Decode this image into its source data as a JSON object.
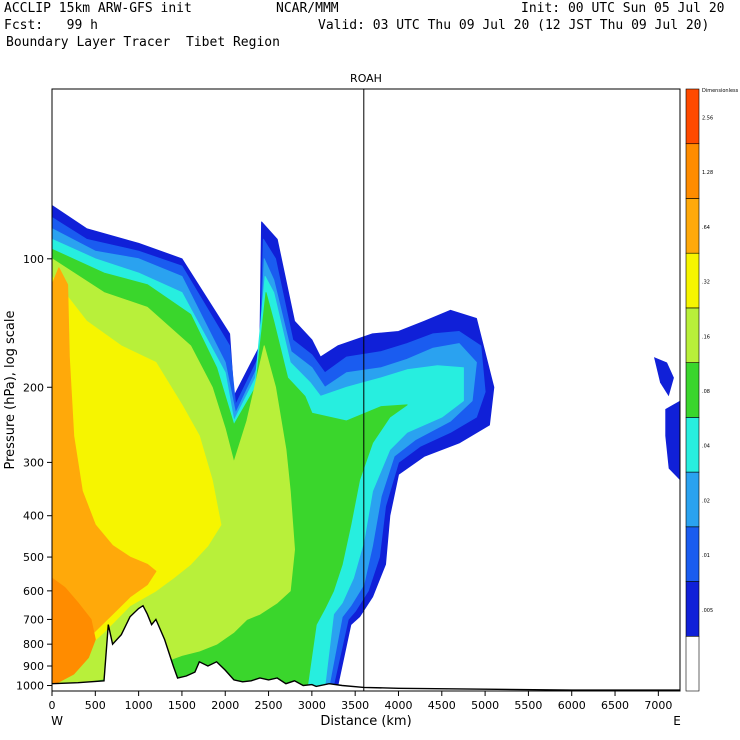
{
  "header": {
    "line1_left": "ACCLIP 15km ARW-GFS init",
    "line1_mid": "NCAR/MMM",
    "line1_right": "Init: 00 UTC Sun 05 Jul 20",
    "line2_left": "Fcst:   99 h",
    "line2_right": "Valid: 03 UTC Thu 09 Jul 20 (12 JST Thu 09 Jul 20)",
    "line3_left": "Boundary Layer Tracer  Tibet Region"
  },
  "chart_data": {
    "type": "heatmap",
    "title": "ROAH",
    "xlabel": "Distance (km)",
    "ylabel": "Pressure (hPa), log scale",
    "x_ticks": [
      0,
      500,
      1000,
      1500,
      2000,
      2500,
      3000,
      3500,
      4000,
      4500,
      5000,
      5500,
      6000,
      6500,
      7000
    ],
    "y_ticks": [
      100,
      200,
      300,
      400,
      500,
      600,
      700,
      800,
      900,
      1000
    ],
    "xlim": [
      0,
      7250
    ],
    "ylim": [
      1030,
      40
    ],
    "y_scale": "log",
    "x_end_labels": {
      "left": "W",
      "right": "E"
    },
    "reference_line_km": 3600,
    "colorbar": {
      "title": "Dimensionless",
      "levels": [
        ".005",
        ".01",
        ".02",
        ".04",
        ".08",
        ".16",
        ".32",
        ".64",
        "1.28",
        "2.56"
      ],
      "colors": [
        "#ffffff",
        "#1020d8",
        "#1a5cf0",
        "#2aa2f0",
        "#27eedf",
        "#3ad62c",
        "#b8f03a",
        "#f6f500",
        "#ffa90a",
        "#ff8c00",
        "#ff4a00"
      ]
    },
    "plume": {
      "layers": [
        {
          "level": "0.01",
          "color": "#1020d8",
          "outline": [
            [
              0,
              1000
            ],
            [
              0,
              75
            ],
            [
              400,
              85
            ],
            [
              1000,
              92
            ],
            [
              1500,
              100
            ],
            [
              2050,
              150
            ],
            [
              2100,
              210
            ],
            [
              2400,
              160
            ],
            [
              2420,
              82
            ],
            [
              2600,
              90
            ],
            [
              2800,
              140
            ],
            [
              3000,
              155
            ],
            [
              3100,
              170
            ],
            [
              3300,
              160
            ],
            [
              3700,
              150
            ],
            [
              4000,
              148
            ],
            [
              4300,
              140
            ],
            [
              4600,
              132
            ],
            [
              4900,
              138
            ],
            [
              5100,
              200
            ],
            [
              5050,
              245
            ],
            [
              4700,
              270
            ],
            [
              4300,
              290
            ],
            [
              4000,
              320
            ],
            [
              3900,
              400
            ],
            [
              3850,
              520
            ],
            [
              3700,
              620
            ],
            [
              3550,
              690
            ],
            [
              3450,
              720
            ],
            [
              3300,
              1000
            ]
          ]
        },
        {
          "level": "0.02",
          "color": "#1a5cf0",
          "outline": [
            [
              0,
              1000
            ],
            [
              0,
              80
            ],
            [
              400,
              90
            ],
            [
              1000,
              96
            ],
            [
              1500,
              104
            ],
            [
              2050,
              160
            ],
            [
              2120,
              220
            ],
            [
              2400,
              168
            ],
            [
              2440,
              90
            ],
            [
              2580,
              100
            ],
            [
              2780,
              155
            ],
            [
              3000,
              168
            ],
            [
              3150,
              185
            ],
            [
              3400,
              170
            ],
            [
              3800,
              165
            ],
            [
              4100,
              158
            ],
            [
              4400,
              150
            ],
            [
              4700,
              148
            ],
            [
              4950,
              160
            ],
            [
              5000,
              205
            ],
            [
              4900,
              235
            ],
            [
              4600,
              255
            ],
            [
              4250,
              275
            ],
            [
              4000,
              300
            ],
            [
              3850,
              380
            ],
            [
              3780,
              500
            ],
            [
              3650,
              600
            ],
            [
              3500,
              670
            ],
            [
              3420,
              700
            ],
            [
              3250,
              1000
            ]
          ]
        },
        {
          "level": "0.04",
          "color": "#2aa2f0",
          "outline": [
            [
              0,
              1000
            ],
            [
              0,
              85
            ],
            [
              500,
              96
            ],
            [
              1000,
              100
            ],
            [
              1500,
              110
            ],
            [
              2000,
              175
            ],
            [
              2120,
              230
            ],
            [
              2400,
              175
            ],
            [
              2450,
              100
            ],
            [
              2560,
              112
            ],
            [
              2760,
              165
            ],
            [
              3000,
              180
            ],
            [
              3150,
              200
            ],
            [
              3400,
              185
            ],
            [
              3800,
              180
            ],
            [
              4100,
              172
            ],
            [
              4400,
              162
            ],
            [
              4700,
              158
            ],
            [
              4900,
              175
            ],
            [
              4850,
              215
            ],
            [
              4600,
              240
            ],
            [
              4200,
              265
            ],
            [
              3950,
              290
            ],
            [
              3800,
              360
            ],
            [
              3700,
              470
            ],
            [
              3600,
              580
            ],
            [
              3450,
              650
            ],
            [
              3350,
              690
            ],
            [
              3200,
              1000
            ]
          ]
        },
        {
          "level": "0.08",
          "color": "#27eedf",
          "outline": [
            [
              0,
              1000
            ],
            [
              0,
              90
            ],
            [
              500,
              100
            ],
            [
              1000,
              108
            ],
            [
              1500,
              120
            ],
            [
              2000,
              185
            ],
            [
              2100,
              240
            ],
            [
              2350,
              190
            ],
            [
              2460,
              110
            ],
            [
              2560,
              120
            ],
            [
              2750,
              175
            ],
            [
              2980,
              195
            ],
            [
              3100,
              210
            ],
            [
              3400,
              200
            ],
            [
              3800,
              190
            ],
            [
              4100,
              182
            ],
            [
              4450,
              178
            ],
            [
              4750,
              180
            ],
            [
              4750,
              215
            ],
            [
              4500,
              235
            ],
            [
              4100,
              255
            ],
            [
              3900,
              280
            ],
            [
              3700,
              350
            ],
            [
              3600,
              460
            ],
            [
              3480,
              560
            ],
            [
              3350,
              640
            ],
            [
              3250,
              680
            ],
            [
              3150,
              1000
            ]
          ]
        },
        {
          "level": "0.16",
          "color": "#3ad62c",
          "outline": [
            [
              0,
              1000
            ],
            [
              0,
              95
            ],
            [
              600,
              108
            ],
            [
              1100,
              115
            ],
            [
              1600,
              135
            ],
            [
              1900,
              180
            ],
            [
              2100,
              245
            ],
            [
              2350,
              200
            ],
            [
              2470,
              120
            ],
            [
              2560,
              140
            ],
            [
              2720,
              190
            ],
            [
              2920,
              210
            ],
            [
              3000,
              230
            ],
            [
              3400,
              240
            ],
            [
              3800,
              222
            ],
            [
              4100,
              220
            ],
            [
              3900,
              235
            ],
            [
              3700,
              270
            ],
            [
              3550,
              330
            ],
            [
              3450,
              420
            ],
            [
              3350,
              520
            ],
            [
              3250,
              600
            ],
            [
              3150,
              660
            ],
            [
              3050,
              720
            ],
            [
              2950,
              1000
            ]
          ]
        },
        {
          "level": "0.32",
          "color": "#b8f03a",
          "outline": [
            [
              0,
              1000
            ],
            [
              0,
              100
            ],
            [
              600,
              120
            ],
            [
              1100,
              130
            ],
            [
              1600,
              160
            ],
            [
              1850,
              200
            ],
            [
              2000,
              250
            ],
            [
              2100,
              300
            ],
            [
              2250,
              240
            ],
            [
              2450,
              160
            ],
            [
              2580,
              200
            ],
            [
              2700,
              280
            ],
            [
              2750,
              350
            ],
            [
              2800,
              480
            ],
            [
              2750,
              600
            ],
            [
              2600,
              640
            ],
            [
              2400,
              680
            ],
            [
              2250,
              700
            ],
            [
              2100,
              750
            ],
            [
              1900,
              800
            ],
            [
              1700,
              830
            ],
            [
              1500,
              850
            ],
            [
              1300,
              880
            ],
            [
              1100,
              920
            ],
            [
              800,
              950
            ],
            [
              400,
              980
            ],
            [
              0,
              1000
            ]
          ]
        },
        {
          "level": "0.64",
          "color": "#f6f500",
          "outline": [
            [
              0,
              1000
            ],
            [
              0,
              110
            ],
            [
              400,
              140
            ],
            [
              800,
              160
            ],
            [
              1200,
              175
            ],
            [
              1500,
              220
            ],
            [
              1700,
              260
            ],
            [
              1850,
              330
            ],
            [
              1950,
              420
            ],
            [
              1800,
              470
            ],
            [
              1600,
              520
            ],
            [
              1400,
              560
            ],
            [
              1200,
              600
            ],
            [
              900,
              650
            ],
            [
              600,
              750
            ],
            [
              300,
              850
            ],
            [
              0,
              1000
            ]
          ]
        },
        {
          "level": "1.28",
          "color": "#ffa90a",
          "outline": [
            [
              0,
              1000
            ],
            [
              0,
              115
            ],
            [
              80,
              105
            ],
            [
              180,
              115
            ],
            [
              200,
              170
            ],
            [
              250,
              260
            ],
            [
              350,
              350
            ],
            [
              500,
              420
            ],
            [
              700,
              470
            ],
            [
              900,
              500
            ],
            [
              1100,
              520
            ],
            [
              1200,
              540
            ],
            [
              1100,
              580
            ],
            [
              900,
              620
            ],
            [
              700,
              680
            ],
            [
              400,
              780
            ],
            [
              100,
              900
            ],
            [
              0,
              1000
            ]
          ]
        },
        {
          "level": "2.56",
          "color": "#ff8c00",
          "outline": [
            [
              0,
              1000
            ],
            [
              0,
              560
            ],
            [
              150,
              590
            ],
            [
              300,
              640
            ],
            [
              450,
              700
            ],
            [
              500,
              780
            ],
            [
              420,
              860
            ],
            [
              250,
              940
            ],
            [
              0,
              1000
            ]
          ]
        }
      ],
      "east_patch": [
        [
          6950,
          170
        ],
        [
          7100,
          175
        ],
        [
          7180,
          190
        ],
        [
          7120,
          210
        ],
        [
          7020,
          195
        ]
      ],
      "east_edge_patch": [
        [
          7080,
          225
        ],
        [
          7250,
          215
        ],
        [
          7250,
          330
        ],
        [
          7120,
          310
        ],
        [
          7080,
          260
        ]
      ]
    },
    "terrain_km_hpa": [
      [
        0,
        990
      ],
      [
        300,
        985
      ],
      [
        600,
        975
      ],
      [
        650,
        720
      ],
      [
        700,
        800
      ],
      [
        800,
        760
      ],
      [
        900,
        690
      ],
      [
        1000,
        660
      ],
      [
        1050,
        650
      ],
      [
        1100,
        680
      ],
      [
        1150,
        720
      ],
      [
        1200,
        700
      ],
      [
        1300,
        780
      ],
      [
        1400,
        900
      ],
      [
        1450,
        960
      ],
      [
        1550,
        950
      ],
      [
        1650,
        930
      ],
      [
        1700,
        880
      ],
      [
        1800,
        900
      ],
      [
        1900,
        880
      ],
      [
        2000,
        920
      ],
      [
        2100,
        970
      ],
      [
        2200,
        980
      ],
      [
        2300,
        975
      ],
      [
        2400,
        960
      ],
      [
        2500,
        970
      ],
      [
        2600,
        960
      ],
      [
        2700,
        990
      ],
      [
        2800,
        975
      ],
      [
        2900,
        1000
      ],
      [
        3000,
        995
      ],
      [
        3050,
        1005
      ],
      [
        3200,
        990
      ],
      [
        3350,
        1000
      ],
      [
        3600,
        1010
      ],
      [
        4000,
        1015
      ],
      [
        5000,
        1020
      ],
      [
        6000,
        1025
      ],
      [
        7250,
        1025
      ]
    ]
  }
}
